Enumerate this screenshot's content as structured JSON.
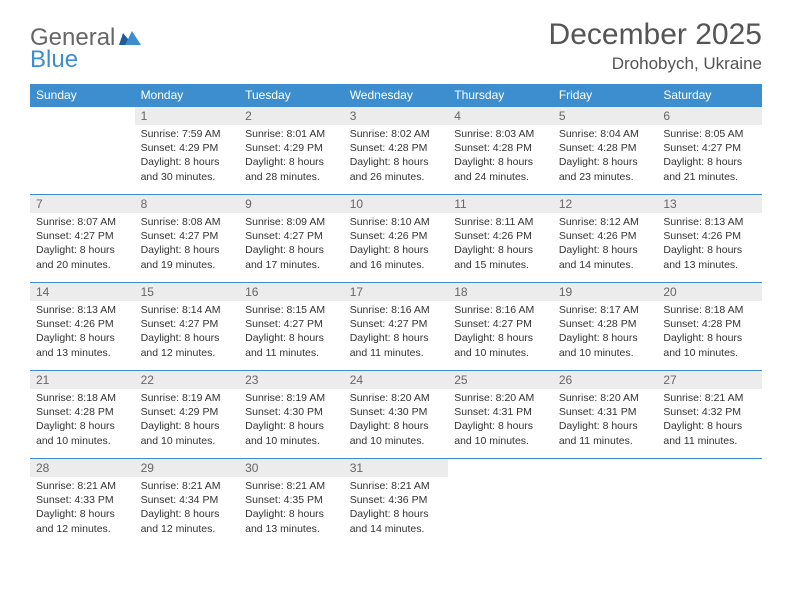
{
  "logo": {
    "prefix": "General",
    "suffix": "Blue"
  },
  "header": {
    "month": "December 2025",
    "location": "Drohobych, Ukraine"
  },
  "colors": {
    "header_bar": "#3d8ecf",
    "daynum_bg": "#ececec",
    "text": "#333333",
    "muted": "#666666"
  },
  "weekdays": [
    "Sunday",
    "Monday",
    "Tuesday",
    "Wednesday",
    "Thursday",
    "Friday",
    "Saturday"
  ],
  "first_weekday_index": 1,
  "days": [
    {
      "n": 1,
      "sunrise": "7:59 AM",
      "sunset": "4:29 PM",
      "daylight": "8 hours and 30 minutes."
    },
    {
      "n": 2,
      "sunrise": "8:01 AM",
      "sunset": "4:29 PM",
      "daylight": "8 hours and 28 minutes."
    },
    {
      "n": 3,
      "sunrise": "8:02 AM",
      "sunset": "4:28 PM",
      "daylight": "8 hours and 26 minutes."
    },
    {
      "n": 4,
      "sunrise": "8:03 AM",
      "sunset": "4:28 PM",
      "daylight": "8 hours and 24 minutes."
    },
    {
      "n": 5,
      "sunrise": "8:04 AM",
      "sunset": "4:28 PM",
      "daylight": "8 hours and 23 minutes."
    },
    {
      "n": 6,
      "sunrise": "8:05 AM",
      "sunset": "4:27 PM",
      "daylight": "8 hours and 21 minutes."
    },
    {
      "n": 7,
      "sunrise": "8:07 AM",
      "sunset": "4:27 PM",
      "daylight": "8 hours and 20 minutes."
    },
    {
      "n": 8,
      "sunrise": "8:08 AM",
      "sunset": "4:27 PM",
      "daylight": "8 hours and 19 minutes."
    },
    {
      "n": 9,
      "sunrise": "8:09 AM",
      "sunset": "4:27 PM",
      "daylight": "8 hours and 17 minutes."
    },
    {
      "n": 10,
      "sunrise": "8:10 AM",
      "sunset": "4:26 PM",
      "daylight": "8 hours and 16 minutes."
    },
    {
      "n": 11,
      "sunrise": "8:11 AM",
      "sunset": "4:26 PM",
      "daylight": "8 hours and 15 minutes."
    },
    {
      "n": 12,
      "sunrise": "8:12 AM",
      "sunset": "4:26 PM",
      "daylight": "8 hours and 14 minutes."
    },
    {
      "n": 13,
      "sunrise": "8:13 AM",
      "sunset": "4:26 PM",
      "daylight": "8 hours and 13 minutes."
    },
    {
      "n": 14,
      "sunrise": "8:13 AM",
      "sunset": "4:26 PM",
      "daylight": "8 hours and 13 minutes."
    },
    {
      "n": 15,
      "sunrise": "8:14 AM",
      "sunset": "4:27 PM",
      "daylight": "8 hours and 12 minutes."
    },
    {
      "n": 16,
      "sunrise": "8:15 AM",
      "sunset": "4:27 PM",
      "daylight": "8 hours and 11 minutes."
    },
    {
      "n": 17,
      "sunrise": "8:16 AM",
      "sunset": "4:27 PM",
      "daylight": "8 hours and 11 minutes."
    },
    {
      "n": 18,
      "sunrise": "8:16 AM",
      "sunset": "4:27 PM",
      "daylight": "8 hours and 10 minutes."
    },
    {
      "n": 19,
      "sunrise": "8:17 AM",
      "sunset": "4:28 PM",
      "daylight": "8 hours and 10 minutes."
    },
    {
      "n": 20,
      "sunrise": "8:18 AM",
      "sunset": "4:28 PM",
      "daylight": "8 hours and 10 minutes."
    },
    {
      "n": 21,
      "sunrise": "8:18 AM",
      "sunset": "4:28 PM",
      "daylight": "8 hours and 10 minutes."
    },
    {
      "n": 22,
      "sunrise": "8:19 AM",
      "sunset": "4:29 PM",
      "daylight": "8 hours and 10 minutes."
    },
    {
      "n": 23,
      "sunrise": "8:19 AM",
      "sunset": "4:30 PM",
      "daylight": "8 hours and 10 minutes."
    },
    {
      "n": 24,
      "sunrise": "8:20 AM",
      "sunset": "4:30 PM",
      "daylight": "8 hours and 10 minutes."
    },
    {
      "n": 25,
      "sunrise": "8:20 AM",
      "sunset": "4:31 PM",
      "daylight": "8 hours and 10 minutes."
    },
    {
      "n": 26,
      "sunrise": "8:20 AM",
      "sunset": "4:31 PM",
      "daylight": "8 hours and 11 minutes."
    },
    {
      "n": 27,
      "sunrise": "8:21 AM",
      "sunset": "4:32 PM",
      "daylight": "8 hours and 11 minutes."
    },
    {
      "n": 28,
      "sunrise": "8:21 AM",
      "sunset": "4:33 PM",
      "daylight": "8 hours and 12 minutes."
    },
    {
      "n": 29,
      "sunrise": "8:21 AM",
      "sunset": "4:34 PM",
      "daylight": "8 hours and 12 minutes."
    },
    {
      "n": 30,
      "sunrise": "8:21 AM",
      "sunset": "4:35 PM",
      "daylight": "8 hours and 13 minutes."
    },
    {
      "n": 31,
      "sunrise": "8:21 AM",
      "sunset": "4:36 PM",
      "daylight": "8 hours and 14 minutes."
    }
  ],
  "labels": {
    "sunrise": "Sunrise:",
    "sunset": "Sunset:",
    "daylight": "Daylight:"
  }
}
